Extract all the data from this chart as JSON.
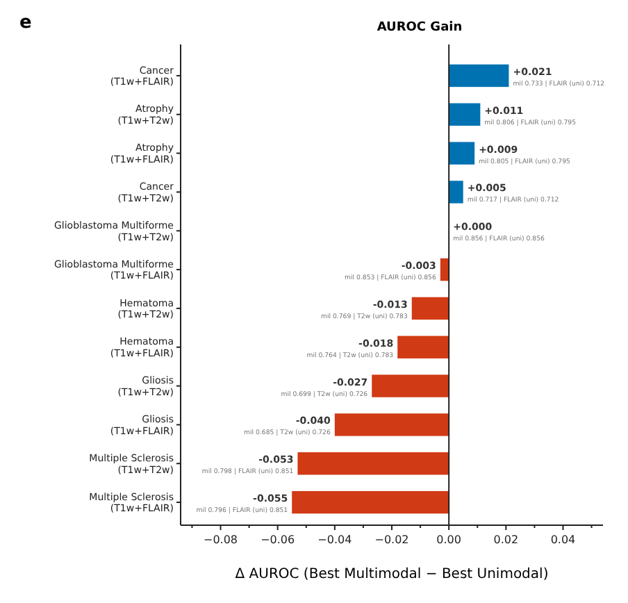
{
  "chart_data": {
    "type": "bar",
    "orientation": "horizontal",
    "title": "AUROC Gain",
    "xlabel": "Δ AUROC  (Best Multimodal − Best Unimodal)",
    "categories": [
      "Cancer (T1w+FLAIR)",
      "Atrophy (T1w+T2w)",
      "Atrophy (T1w+FLAIR)",
      "Cancer (T1w+T2w)",
      "Glioblastoma Multiforme (T1w+T2w)",
      "Glioblastoma Multiforme (T1w+FLAIR)",
      "Hematoma (T1w+T2w)",
      "Hematoma (T1w+FLAIR)",
      "Gliosis (T1w+T2w)",
      "Gliosis (T1w+FLAIR)",
      "Multiple Sclerosis (T1w+T2w)",
      "Multiple Sclerosis (T1w+FLAIR)"
    ],
    "values": [
      0.021,
      0.011,
      0.009,
      0.005,
      0.0,
      -0.003,
      -0.013,
      -0.018,
      -0.027,
      -0.04,
      -0.053,
      -0.055
    ],
    "colors": [
      "#0072b2",
      "#0072b2",
      "#0072b2",
      "#0072b2",
      "#0072b2",
      "#d03a15",
      "#d03a15",
      "#d03a15",
      "#d03a15",
      "#d03a15",
      "#d03a15",
      "#d03a15"
    ],
    "value_labels": [
      "+0.021",
      "+0.011",
      "+0.009",
      "+0.005",
      "+0.000",
      "-0.003",
      "-0.013",
      "-0.018",
      "-0.027",
      "-0.040",
      "-0.053",
      "-0.055"
    ],
    "xlim": [
      -0.094,
      0.054
    ],
    "xticks": [
      {
        "value": -0.09,
        "label": null
      },
      {
        "value": -0.08,
        "label": "−0.08"
      },
      {
        "value": -0.07,
        "label": null
      },
      {
        "value": -0.06,
        "label": "−0.06"
      },
      {
        "value": -0.05,
        "label": null
      },
      {
        "value": -0.04,
        "label": "−0.04"
      },
      {
        "value": -0.03,
        "label": null
      },
      {
        "value": -0.02,
        "label": "−0.02"
      },
      {
        "value": -0.01,
        "label": null
      },
      {
        "value": 0,
        "label": "0.00"
      },
      {
        "value": 0.01,
        "label": null
      },
      {
        "value": 0.02,
        "label": "0.02"
      },
      {
        "value": 0.03,
        "label": null
      },
      {
        "value": 0.04,
        "label": "0.04"
      },
      {
        "value": 0.05,
        "label": null
      }
    ],
    "ref_lines": [
      {
        "axis": "x",
        "value": 0,
        "color": "#222222"
      }
    ],
    "annotations": [
      "e",
      {
        "text": "mil 0.733 | FLAIR (uni) 0.712",
        "x": 0.021,
        "y": "Cancer (T1w+FLAIR)"
      },
      {
        "text": "mil 0.806 | FLAIR (uni) 0.795",
        "x": 0.011,
        "y": "Atrophy (T1w+T2w)"
      },
      {
        "text": "mil 0.805 | FLAIR (uni) 0.795",
        "x": 0.009,
        "y": "Atrophy (T1w+FLAIR)"
      },
      {
        "text": "mil 0.717 | FLAIR (uni) 0.712",
        "x": 0.005,
        "y": "Cancer (T1w+T2w)"
      },
      {
        "text": "mil 0.856 | FLAIR (uni) 0.856",
        "x": 0.0,
        "y": "Glioblastoma Multiforme (T1w+T2w)"
      },
      {
        "text": "mil 0.853 | FLAIR (uni) 0.856",
        "x": -0.003,
        "y": "Glioblastoma Multiforme (T1w+FLAIR)"
      },
      {
        "text": "mil 0.769 | T2w (uni) 0.783",
        "x": -0.013,
        "y": "Hematoma (T1w+T2w)"
      },
      {
        "text": "mil 0.764 | T2w (uni) 0.783",
        "x": -0.018,
        "y": "Hematoma (T1w+FLAIR)"
      },
      {
        "text": "mil 0.699 | T2w (uni) 0.726",
        "x": -0.027,
        "y": "Gliosis (T1w+T2w)"
      },
      {
        "text": "mil 0.685 | T2w (uni) 0.726",
        "x": -0.04,
        "y": "Gliosis (T1w+FLAIR)"
      },
      {
        "text": "mil 0.798 | FLAIR (uni) 0.851",
        "x": -0.053,
        "y": "Multiple Sclerosis (T1w+T2w)"
      },
      {
        "text": "mil 0.796 | FLAIR (uni) 0.851",
        "x": -0.055,
        "y": "Multiple Sclerosis (T1w+FLAIR)"
      }
    ]
  }
}
